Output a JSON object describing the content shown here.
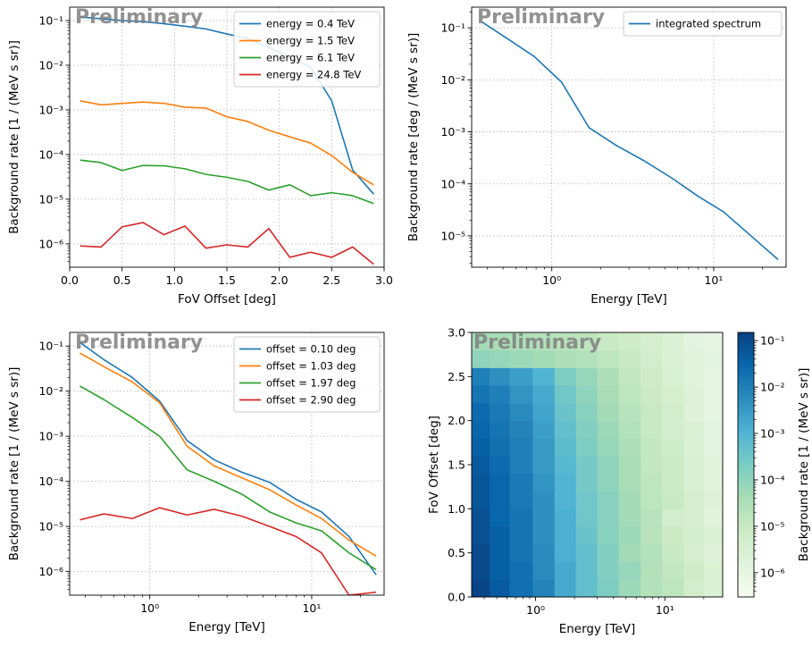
{
  "watermark": "Preliminary",
  "chart_data": [
    {
      "type": "line",
      "panel": "top-left",
      "xlabel": "FoV Offset [deg]",
      "ylabel": "Background rate [1 / (MeV s sr)]",
      "xlim": [
        0.0,
        3.0
      ],
      "ylim": [
        3e-07,
        0.2
      ],
      "xscale": "linear",
      "yscale": "log",
      "xticks": [
        0.0,
        0.5,
        1.0,
        1.5,
        2.0,
        2.5,
        3.0
      ],
      "xtick_labels": [
        "0.0",
        "0.5",
        "1.0",
        "1.5",
        "2.0",
        "2.5",
        "3.0"
      ],
      "yticks": [
        1e-06,
        1e-05,
        0.0001,
        0.001,
        0.01,
        0.1
      ],
      "ytick_labels": [
        "10⁻⁶",
        "10⁻⁵",
        "10⁻⁴",
        "10⁻³",
        "10⁻²",
        "10⁻¹"
      ],
      "grid": true,
      "legend_position": "top-right",
      "x": [
        0.1,
        0.3,
        0.5,
        0.7,
        0.9,
        1.1,
        1.3,
        1.5,
        1.7,
        1.9,
        2.1,
        2.3,
        2.5,
        2.7,
        2.9
      ],
      "series": [
        {
          "name": "energy = 0.4 TeV",
          "color": "#1f77b4",
          "values": [
            0.12,
            0.11,
            0.1,
            0.095,
            0.085,
            0.075,
            0.065,
            0.05,
            0.04,
            0.025,
            0.015,
            0.009,
            0.0016,
            4.5e-05,
            1.3e-05
          ]
        },
        {
          "name": "energy = 1.5 TeV",
          "color": "#ff7f0e",
          "values": [
            0.0016,
            0.0013,
            0.0014,
            0.0015,
            0.0014,
            0.00115,
            0.0011,
            0.0007,
            0.00055,
            0.00035,
            0.00025,
            0.00018,
            9.5e-05,
            4e-05,
            2.1e-05
          ]
        },
        {
          "name": "energy = 6.1 TeV",
          "color": "#2ca02c",
          "values": [
            7.5e-05,
            6.6e-05,
            4.4e-05,
            5.7e-05,
            5.6e-05,
            4.8e-05,
            3.6e-05,
            3.1e-05,
            2.5e-05,
            1.6e-05,
            2.1e-05,
            1.2e-05,
            1.4e-05,
            1.2e-05,
            8e-06
          ]
        },
        {
          "name": "energy = 24.8 TeV",
          "color": "#d62728",
          "values": [
            9e-07,
            8.5e-07,
            2.4e-06,
            3e-06,
            1.6e-06,
            2.5e-06,
            8e-07,
            9.5e-07,
            8.5e-07,
            2.2e-06,
            5e-07,
            6.5e-07,
            5e-07,
            8.5e-07,
            3.5e-07
          ]
        }
      ]
    },
    {
      "type": "line",
      "panel": "top-right",
      "xlabel": "Energy [TeV]",
      "ylabel": "Background rate [deg / (MeV s sr)]",
      "xlim": [
        0.32,
        28
      ],
      "ylim": [
        2.5e-06,
        0.25
      ],
      "xscale": "log",
      "yscale": "log",
      "xticks": [
        1,
        10
      ],
      "xtick_labels": [
        "10⁰",
        "10¹"
      ],
      "yticks": [
        1e-05,
        0.0001,
        0.001,
        0.01,
        0.1
      ],
      "ytick_labels": [
        "10⁻⁵",
        "10⁻⁴",
        "10⁻³",
        "10⁻²",
        "10⁻¹"
      ],
      "grid": true,
      "legend_position": "top-right",
      "x": [
        0.37,
        0.52,
        0.78,
        1.15,
        1.7,
        2.5,
        3.7,
        5.5,
        8.0,
        11.5,
        17,
        25
      ],
      "series": [
        {
          "name": "integrated spectrum",
          "color": "#1f77b4",
          "values": [
            0.13,
            0.065,
            0.028,
            0.009,
            0.0012,
            0.00055,
            0.00028,
            0.00013,
            5.8e-05,
            2.9e-05,
            1e-05,
            3.5e-06
          ]
        }
      ]
    },
    {
      "type": "line",
      "panel": "bottom-left",
      "xlabel": "Energy [TeV]",
      "ylabel": "Background rate [1 / (MeV s sr)]",
      "xlim": [
        0.32,
        28
      ],
      "ylim": [
        3e-07,
        0.2
      ],
      "xscale": "log",
      "yscale": "log",
      "xticks": [
        1,
        10
      ],
      "xtick_labels": [
        "10⁰",
        "10¹"
      ],
      "yticks": [
        1e-06,
        1e-05,
        0.0001,
        0.001,
        0.01,
        0.1
      ],
      "ytick_labels": [
        "10⁻⁶",
        "10⁻⁵",
        "10⁻⁴",
        "10⁻³",
        "10⁻²",
        "10⁻¹"
      ],
      "grid": true,
      "legend_position": "top-right",
      "x": [
        0.37,
        0.52,
        0.78,
        1.15,
        1.7,
        2.5,
        3.7,
        5.5,
        8.0,
        11.5,
        17,
        25
      ],
      "series": [
        {
          "name": "offset = 0.10 deg",
          "color": "#1f77b4",
          "values": [
            0.12,
            0.05,
            0.02,
            0.006,
            0.0008,
            0.0003,
            0.00016,
            9.5e-05,
            4e-05,
            2.1e-05,
            6e-06,
            8.5e-07
          ]
        },
        {
          "name": "offset = 1.03 deg",
          "color": "#ff7f0e",
          "values": [
            0.07,
            0.035,
            0.016,
            0.0055,
            0.0006,
            0.00022,
            0.00012,
            6.5e-05,
            3e-05,
            1.5e-05,
            5e-06,
            2.2e-06
          ]
        },
        {
          "name": "offset = 1.97 deg",
          "color": "#2ca02c",
          "values": [
            0.013,
            0.0065,
            0.0026,
            0.001,
            0.00018,
            0.0001,
            5.2e-05,
            2.1e-05,
            1.2e-05,
            8e-06,
            2.6e-06,
            1.1e-06
          ]
        },
        {
          "name": "offset = 2.90 deg",
          "color": "#d62728",
          "values": [
            1.4e-05,
            1.9e-05,
            1.5e-05,
            2.6e-05,
            1.8e-05,
            2.4e-05,
            1.7e-05,
            1e-05,
            6e-06,
            2.6e-06,
            3e-07,
            3.5e-07
          ]
        }
      ]
    },
    {
      "type": "heatmap",
      "panel": "bottom-right",
      "xlabel": "Energy [TeV]",
      "ylabel": "FoV Offset [deg]",
      "colorbar_label": "Background rate [1 / (MeV s sr)]",
      "colormap": "GnBu",
      "xscale": "log",
      "xlim": [
        0.32,
        28
      ],
      "ylim": [
        0.0,
        3.0
      ],
      "xticks": [
        1,
        10
      ],
      "xtick_labels": [
        "10⁰",
        "10¹"
      ],
      "yticks": [
        0.0,
        0.5,
        1.0,
        1.5,
        2.0,
        2.5,
        3.0
      ],
      "ytick_labels": [
        "0.0",
        "0.5",
        "1.0",
        "1.5",
        "2.0",
        "2.5",
        "3.0"
      ],
      "color_range": [
        3e-07,
        0.15
      ],
      "colorbar_ticks": [
        1e-06,
        1e-05,
        0.0001,
        0.001,
        0.01,
        0.1
      ],
      "colorbar_tick_labels": [
        "10⁻⁶",
        "10⁻⁵",
        "10⁻⁴",
        "10⁻³",
        "10⁻²",
        "10⁻¹"
      ],
      "x_edges": [
        0.32,
        0.44,
        0.63,
        0.95,
        1.4,
        2.05,
        3.0,
        4.4,
        6.5,
        9.5,
        14,
        20,
        28
      ],
      "y_edges": [
        0.0,
        0.2,
        0.4,
        0.6,
        0.8,
        1.0,
        1.2,
        1.4,
        1.6,
        1.8,
        2.0,
        2.2,
        2.4,
        2.6,
        2.8,
        3.0
      ],
      "log10_values": [
        [
          -0.9,
          -1.3,
          -1.7,
          -2.1,
          -2.8,
          -3.3,
          -3.7,
          -4.2,
          -4.6,
          -4.8,
          -5.3,
          -5.6
        ],
        [
          -1.0,
          -1.4,
          -1.7,
          -2.2,
          -2.8,
          -3.3,
          -3.8,
          -4.1,
          -4.6,
          -4.9,
          -5.2,
          -5.6
        ],
        [
          -1.0,
          -1.4,
          -1.8,
          -2.2,
          -2.9,
          -3.3,
          -3.8,
          -4.3,
          -4.6,
          -5.0,
          -5.4,
          -5.7
        ],
        [
          -1.1,
          -1.4,
          -1.8,
          -2.3,
          -2.9,
          -3.4,
          -3.9,
          -4.2,
          -4.7,
          -5.1,
          -5.3,
          -5.6
        ],
        [
          -1.1,
          -1.5,
          -1.8,
          -2.3,
          -2.9,
          -3.5,
          -3.9,
          -4.3,
          -4.7,
          -5.3,
          -5.4,
          -5.8
        ],
        [
          -1.2,
          -1.5,
          -1.9,
          -2.3,
          -3.0,
          -3.5,
          -3.9,
          -4.3,
          -4.8,
          -5.0,
          -5.4,
          -5.7
        ],
        [
          -1.2,
          -1.5,
          -1.9,
          -2.4,
          -3.0,
          -3.6,
          -4.0,
          -4.4,
          -4.8,
          -5.1,
          -5.5,
          -5.8
        ],
        [
          -1.3,
          -1.6,
          -2.0,
          -2.5,
          -3.1,
          -3.6,
          -4.0,
          -4.4,
          -4.9,
          -5.1,
          -5.5,
          -5.8
        ],
        [
          -1.4,
          -1.7,
          -2.0,
          -2.5,
          -3.2,
          -3.7,
          -4.1,
          -4.5,
          -4.9,
          -5.2,
          -5.6,
          -5.9
        ],
        [
          -1.5,
          -1.8,
          -2.1,
          -2.6,
          -3.3,
          -3.8,
          -4.2,
          -4.6,
          -5.0,
          -5.3,
          -5.6,
          -5.9
        ],
        [
          -1.6,
          -1.9,
          -2.2,
          -2.7,
          -3.4,
          -3.9,
          -4.3,
          -4.7,
          -5.0,
          -5.3,
          -5.7,
          -6.0
        ],
        [
          -1.8,
          -2.0,
          -2.4,
          -2.8,
          -3.5,
          -4.0,
          -4.4,
          -4.8,
          -5.1,
          -5.4,
          -5.7,
          -6.0
        ],
        [
          -2.0,
          -2.3,
          -2.6,
          -3.0,
          -3.7,
          -4.1,
          -4.5,
          -4.9,
          -5.2,
          -5.5,
          -5.8,
          -6.0
        ],
        [
          -4.0,
          -4.1,
          -4.2,
          -4.3,
          -4.5,
          -4.6,
          -4.8,
          -5.0,
          -5.3,
          -5.6,
          -5.8,
          -5.9
        ],
        [
          -4.3,
          -4.4,
          -4.5,
          -4.6,
          -4.7,
          -4.8,
          -5.0,
          -5.2,
          -5.4,
          -5.6,
          -5.9,
          -6.0
        ]
      ]
    }
  ]
}
